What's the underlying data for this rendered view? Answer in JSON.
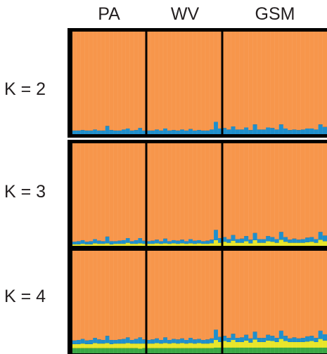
{
  "populations": [
    "PA",
    "WV",
    "GSM"
  ],
  "panels": [
    {
      "label": "K = 2"
    },
    {
      "label": "K = 3"
    },
    {
      "label": "K = 4"
    }
  ],
  "colors": {
    "orange": "#f7964b",
    "blue": "#1f8fcc",
    "yellow": "#e8e62a",
    "green": "#3aa845",
    "frame": "#000000"
  },
  "chart_data": {
    "type": "bar",
    "subtype": "stacked-admixture",
    "title": "",
    "xlabel": "",
    "ylabel": "",
    "ylim": [
      0,
      1
    ],
    "groups": [
      {
        "name": "PA",
        "n": 18
      },
      {
        "name": "WV",
        "n": 18
      },
      {
        "name": "GSM",
        "n": 24
      }
    ],
    "panels": [
      {
        "k": 2,
        "series": [
          {
            "color": "orange",
            "values": [
              0.965,
              0.965,
              0.96,
              0.965,
              0.965,
              0.955,
              0.965,
              0.965,
              0.92,
              0.96,
              0.965,
              0.965,
              0.955,
              0.945,
              0.965,
              0.96,
              0.94,
              0.965,
              0.965,
              0.965,
              0.955,
              0.965,
              0.945,
              0.965,
              0.96,
              0.965,
              0.955,
              0.965,
              0.95,
              0.965,
              0.96,
              0.965,
              0.965,
              0.955,
              0.88,
              0.945,
              0.94,
              0.955,
              0.925,
              0.955,
              0.955,
              0.935,
              0.96,
              0.905,
              0.955,
              0.955,
              0.935,
              0.94,
              0.955,
              0.905,
              0.945,
              0.96,
              0.955,
              0.96,
              0.955,
              0.945,
              0.945,
              0.955,
              0.905,
              0.93
            ]
          },
          {
            "color": "blue",
            "values": [
              0.035,
              0.035,
              0.04,
              0.035,
              0.035,
              0.045,
              0.035,
              0.035,
              0.08,
              0.04,
              0.035,
              0.035,
              0.045,
              0.055,
              0.035,
              0.04,
              0.06,
              0.035,
              0.035,
              0.035,
              0.045,
              0.035,
              0.055,
              0.035,
              0.04,
              0.035,
              0.045,
              0.035,
              0.05,
              0.035,
              0.04,
              0.035,
              0.035,
              0.045,
              0.12,
              0.055,
              0.06,
              0.045,
              0.075,
              0.045,
              0.045,
              0.065,
              0.04,
              0.095,
              0.045,
              0.045,
              0.065,
              0.06,
              0.045,
              0.095,
              0.055,
              0.04,
              0.045,
              0.04,
              0.045,
              0.055,
              0.055,
              0.045,
              0.095,
              0.07
            ]
          }
        ]
      },
      {
        "k": 3,
        "series": [
          {
            "color": "orange",
            "values": [
              0.96,
              0.955,
              0.945,
              0.96,
              0.955,
              0.935,
              0.95,
              0.955,
              0.91,
              0.955,
              0.955,
              0.95,
              0.945,
              0.925,
              0.955,
              0.945,
              0.925,
              0.95,
              0.955,
              0.95,
              0.94,
              0.955,
              0.93,
              0.955,
              0.945,
              0.95,
              0.94,
              0.955,
              0.935,
              0.95,
              0.945,
              0.955,
              0.95,
              0.94,
              0.845,
              0.925,
              0.915,
              0.935,
              0.895,
              0.935,
              0.93,
              0.905,
              0.94,
              0.875,
              0.935,
              0.935,
              0.905,
              0.915,
              0.935,
              0.865,
              0.915,
              0.94,
              0.93,
              0.94,
              0.935,
              0.92,
              0.915,
              0.935,
              0.865,
              0.9
            ]
          },
          {
            "color": "blue",
            "values": [
              0.025,
              0.03,
              0.035,
              0.025,
              0.03,
              0.04,
              0.03,
              0.025,
              0.065,
              0.03,
              0.025,
              0.03,
              0.035,
              0.045,
              0.025,
              0.035,
              0.05,
              0.03,
              0.025,
              0.03,
              0.035,
              0.025,
              0.045,
              0.025,
              0.03,
              0.03,
              0.035,
              0.025,
              0.04,
              0.03,
              0.03,
              0.025,
              0.03,
              0.035,
              0.1,
              0.045,
              0.045,
              0.035,
              0.055,
              0.035,
              0.04,
              0.05,
              0.035,
              0.07,
              0.035,
              0.035,
              0.05,
              0.045,
              0.035,
              0.075,
              0.045,
              0.03,
              0.04,
              0.03,
              0.035,
              0.045,
              0.045,
              0.035,
              0.075,
              0.055
            ]
          },
          {
            "color": "yellow",
            "values": [
              0.015,
              0.015,
              0.02,
              0.015,
              0.015,
              0.025,
              0.02,
              0.02,
              0.025,
              0.015,
              0.02,
              0.02,
              0.02,
              0.03,
              0.02,
              0.02,
              0.025,
              0.02,
              0.02,
              0.02,
              0.025,
              0.02,
              0.025,
              0.02,
              0.025,
              0.02,
              0.025,
              0.02,
              0.025,
              0.02,
              0.025,
              0.02,
              0.02,
              0.025,
              0.055,
              0.03,
              0.04,
              0.03,
              0.05,
              0.03,
              0.03,
              0.045,
              0.025,
              0.055,
              0.03,
              0.03,
              0.045,
              0.04,
              0.03,
              0.06,
              0.04,
              0.03,
              0.03,
              0.03,
              0.03,
              0.035,
              0.04,
              0.03,
              0.06,
              0.045
            ]
          }
        ]
      },
      {
        "k": 4,
        "series": [
          {
            "color": "orange",
            "values": [
              0.875,
              0.87,
              0.86,
              0.875,
              0.87,
              0.85,
              0.865,
              0.87,
              0.83,
              0.87,
              0.87,
              0.865,
              0.86,
              0.845,
              0.87,
              0.86,
              0.845,
              0.865,
              0.87,
              0.865,
              0.855,
              0.87,
              0.845,
              0.87,
              0.86,
              0.865,
              0.855,
              0.87,
              0.85,
              0.865,
              0.86,
              0.87,
              0.865,
              0.855,
              0.77,
              0.84,
              0.83,
              0.85,
              0.81,
              0.85,
              0.845,
              0.82,
              0.855,
              0.79,
              0.85,
              0.85,
              0.82,
              0.83,
              0.85,
              0.78,
              0.83,
              0.855,
              0.845,
              0.855,
              0.85,
              0.835,
              0.83,
              0.85,
              0.78,
              0.815
            ]
          },
          {
            "color": "blue",
            "values": [
              0.035,
              0.04,
              0.045,
              0.035,
              0.04,
              0.05,
              0.04,
              0.035,
              0.07,
              0.04,
              0.035,
              0.04,
              0.045,
              0.055,
              0.035,
              0.045,
              0.06,
              0.04,
              0.035,
              0.04,
              0.045,
              0.035,
              0.055,
              0.035,
              0.04,
              0.04,
              0.045,
              0.035,
              0.05,
              0.04,
              0.04,
              0.035,
              0.04,
              0.045,
              0.1,
              0.05,
              0.05,
              0.04,
              0.06,
              0.04,
              0.045,
              0.055,
              0.04,
              0.075,
              0.04,
              0.04,
              0.055,
              0.05,
              0.04,
              0.08,
              0.05,
              0.035,
              0.045,
              0.035,
              0.04,
              0.05,
              0.05,
              0.04,
              0.08,
              0.06
            ]
          },
          {
            "color": "yellow",
            "values": [
              0.04,
              0.04,
              0.045,
              0.04,
              0.04,
              0.05,
              0.045,
              0.045,
              0.05,
              0.04,
              0.045,
              0.045,
              0.045,
              0.05,
              0.045,
              0.045,
              0.05,
              0.045,
              0.045,
              0.045,
              0.05,
              0.045,
              0.05,
              0.045,
              0.05,
              0.045,
              0.05,
              0.045,
              0.05,
              0.045,
              0.05,
              0.045,
              0.045,
              0.05,
              0.075,
              0.055,
              0.065,
              0.055,
              0.075,
              0.055,
              0.055,
              0.07,
              0.05,
              0.08,
              0.055,
              0.055,
              0.07,
              0.065,
              0.055,
              0.085,
              0.065,
              0.055,
              0.055,
              0.055,
              0.055,
              0.06,
              0.065,
              0.055,
              0.085,
              0.07
            ]
          },
          {
            "color": "green",
            "values": [
              0.05,
              0.05,
              0.05,
              0.05,
              0.05,
              0.05,
              0.05,
              0.05,
              0.05,
              0.05,
              0.05,
              0.05,
              0.05,
              0.05,
              0.05,
              0.05,
              0.045,
              0.05,
              0.05,
              0.05,
              0.05,
              0.05,
              0.05,
              0.05,
              0.05,
              0.05,
              0.05,
              0.05,
              0.05,
              0.05,
              0.05,
              0.05,
              0.05,
              0.05,
              0.055,
              0.055,
              0.055,
              0.055,
              0.055,
              0.055,
              0.055,
              0.055,
              0.055,
              0.055,
              0.055,
              0.055,
              0.055,
              0.055,
              0.055,
              0.055,
              0.055,
              0.055,
              0.055,
              0.055,
              0.055,
              0.055,
              0.055,
              0.055,
              0.055,
              0.055
            ]
          }
        ]
      }
    ]
  }
}
